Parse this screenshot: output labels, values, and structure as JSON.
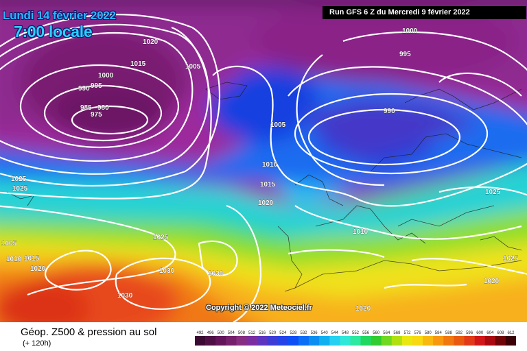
{
  "header": {
    "date_label": "Lundi 14 février 2022",
    "time_label": "7:00 locale",
    "run_label": "Run GFS 6 Z du Mercredi 9 février 2022"
  },
  "map": {
    "copyright": "Copyright © 2022 Meteociel.fr",
    "isobar_labels": [
      {
        "text": "1020"
      },
      {
        "text": "1015"
      },
      {
        "text": "1005"
      },
      {
        "text": "1000"
      },
      {
        "text": "995"
      },
      {
        "text": "990"
      },
      {
        "text": "985"
      },
      {
        "text": "980"
      },
      {
        "text": "975"
      },
      {
        "text": "1000"
      },
      {
        "text": "995"
      },
      {
        "text": "990"
      },
      {
        "text": "1005"
      },
      {
        "text": "1010"
      },
      {
        "text": "1015"
      },
      {
        "text": "1020"
      },
      {
        "text": "1025"
      },
      {
        "text": "1025"
      },
      {
        "text": "1005"
      },
      {
        "text": "1010"
      },
      {
        "text": "1015"
      },
      {
        "text": "1020"
      },
      {
        "text": "1025"
      },
      {
        "text": "1030"
      },
      {
        "text": "1030"
      },
      {
        "text": "1030"
      },
      {
        "text": "1010"
      },
      {
        "text": "1025"
      },
      {
        "text": "1025"
      },
      {
        "text": "1020"
      },
      {
        "text": "1020"
      }
    ]
  },
  "footer": {
    "title": "Géop. Z500 & pression au sol",
    "subtitle": "(+ 120h)"
  },
  "scale": {
    "labels": [
      "492",
      "496",
      "500",
      "504",
      "508",
      "512",
      "516",
      "520",
      "524",
      "528",
      "532",
      "536",
      "540",
      "544",
      "548",
      "552",
      "556",
      "560",
      "564",
      "568",
      "572",
      "576",
      "580",
      "584",
      "588",
      "592",
      "596",
      "600",
      "604",
      "608",
      "612"
    ],
    "colors": [
      "#3a0a33",
      "#4e0f45",
      "#621558",
      "#75206b",
      "#862e80",
      "#7a2ea0",
      "#5d35bf",
      "#3d3dd6",
      "#2444e8",
      "#0d4ff5",
      "#0a6ff5",
      "#0a8ff0",
      "#10b0f0",
      "#25d0f0",
      "#30e8d8",
      "#2de8a0",
      "#20d860",
      "#30cc30",
      "#70d820",
      "#b0e010",
      "#e8e810",
      "#f8d810",
      "#f8b810",
      "#f89810",
      "#f07810",
      "#e85a10",
      "#e03a18",
      "#d01818",
      "#a80a10",
      "#700508",
      "#3a0204"
    ]
  }
}
